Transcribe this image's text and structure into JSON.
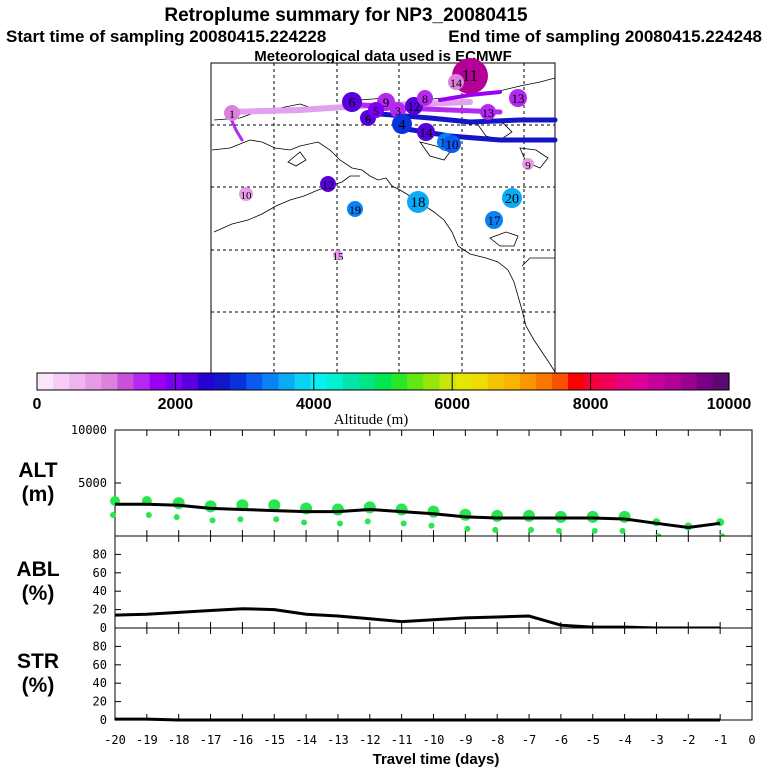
{
  "header": {
    "title": "Retroplume summary for NP3_20080415",
    "start_time": "Start time of sampling 20080415.224228",
    "end_time": "End time of sampling 20080415.224248",
    "met_data": "Meteorological data used is ECMWF"
  },
  "colorbar": {
    "label": "Altitude (m)",
    "tick_labels": [
      "0",
      "2000",
      "4000",
      "6000",
      "8000",
      "10000"
    ],
    "ticks": [
      0,
      2000,
      4000,
      6000,
      8000,
      10000
    ],
    "colors": [
      "#fae6fa",
      "#f5cdf5",
      "#f0b4f0",
      "#e69be6",
      "#dc82dc",
      "#c850dc",
      "#b428f0",
      "#9b00f5",
      "#7d00f0",
      "#5a00dc",
      "#2800d2",
      "#1414c8",
      "#0a32dc",
      "#0a5af0",
      "#0a82f5",
      "#0aaaf5",
      "#0ad2f5",
      "#0af0f0",
      "#00f0d2",
      "#00e6aa",
      "#00e682",
      "#00e650",
      "#28e628",
      "#64e614",
      "#96e60a",
      "#c8e60a",
      "#e6e600",
      "#f0dc00",
      "#f5c300",
      "#fab400",
      "#fa9600",
      "#fa7800",
      "#fa5000",
      "#fa0000",
      "#f5003c",
      "#f0005a",
      "#e60082",
      "#dc0096",
      "#c8009b",
      "#b40096",
      "#9b0091",
      "#780082",
      "#5a0a6e"
    ]
  },
  "map": {
    "trajectory_labels": [
      {
        "text": "11",
        "alt": 9200
      },
      {
        "text": "6",
        "alt": 2200
      },
      {
        "text": "9",
        "alt": 1400
      },
      {
        "text": "6",
        "alt": 2300
      },
      {
        "text": "5",
        "alt": 1900
      },
      {
        "text": "3",
        "alt": 1500
      },
      {
        "text": "4",
        "alt": 2800
      },
      {
        "text": "12",
        "alt": 2100
      },
      {
        "text": "14",
        "alt": 2300
      },
      {
        "text": "13",
        "alt": 1500
      },
      {
        "text": "8",
        "alt": 1400
      },
      {
        "text": "20",
        "alt": 3600
      },
      {
        "text": "18",
        "alt": 3500
      },
      {
        "text": "16",
        "alt": 3300
      },
      {
        "text": "10",
        "alt": 3100
      },
      {
        "text": "19",
        "alt": 3400
      },
      {
        "text": "17",
        "alt": 3300
      },
      {
        "text": "14",
        "alt": 1100
      },
      {
        "text": "13",
        "alt": 1600
      },
      {
        "text": "12",
        "alt": 2100
      },
      {
        "text": "10",
        "alt": 900
      },
      {
        "text": "9",
        "alt": 800
      },
      {
        "text": "15",
        "alt": 700
      },
      {
        "text": "1",
        "alt": 1100
      }
    ]
  },
  "chart_data": [
    {
      "type": "line",
      "name": "ALT",
      "ylabel": "ALT\n(m)",
      "ylabel_lines": [
        "ALT",
        "(m)"
      ],
      "ylim": [
        0,
        10000
      ],
      "yticks": [
        0,
        5000,
        10000
      ],
      "ytick_labels": [
        "5000",
        "10000"
      ],
      "x": [
        -20,
        -19,
        -18,
        -17,
        -16,
        -15,
        -14,
        -13,
        -12,
        -11,
        -10,
        -9,
        -8,
        -7,
        -6,
        -5,
        -4,
        -3,
        -2,
        -1
      ],
      "series": [
        {
          "name": "median altitude",
          "values": [
            3000,
            3000,
            2900,
            2600,
            2500,
            2400,
            2300,
            2300,
            2500,
            2300,
            2100,
            1800,
            1700,
            1700,
            1700,
            1700,
            1600,
            1200,
            800,
            1200
          ]
        },
        {
          "name": "cluster altitude (markers)",
          "values": [
            3300,
            3300,
            3100,
            2800,
            2900,
            2900,
            2600,
            2500,
            2700,
            2500,
            2300,
            2000,
            1900,
            1900,
            1800,
            1800,
            1800,
            1300,
            900,
            1300
          ]
        }
      ]
    },
    {
      "type": "line",
      "name": "ABL",
      "ylabel_lines": [
        "ABL",
        "(%)"
      ],
      "ylim": [
        0,
        100
      ],
      "yticks": [
        0,
        20,
        40,
        60,
        80
      ],
      "ytick_labels": [
        "0",
        "20",
        "40",
        "60",
        "80"
      ],
      "x": [
        -20,
        -19,
        -18,
        -17,
        -16,
        -15,
        -14,
        -13,
        -12,
        -11,
        -10,
        -9,
        -8,
        -7,
        -6,
        -5,
        -4,
        -3,
        -2,
        -1
      ],
      "values": [
        14,
        15,
        17,
        19,
        21,
        20,
        15,
        13,
        10,
        7,
        9,
        11,
        12,
        13,
        3,
        1,
        1,
        0,
        0,
        0
      ]
    },
    {
      "type": "line",
      "name": "STR",
      "ylabel_lines": [
        "STR",
        "(%)"
      ],
      "ylim": [
        0,
        100
      ],
      "yticks": [
        0,
        20,
        40,
        60,
        80
      ],
      "ytick_labels": [
        "0",
        "20",
        "40",
        "60",
        "80"
      ],
      "x": [
        -20,
        -19,
        -18,
        -17,
        -16,
        -15,
        -14,
        -13,
        -12,
        -11,
        -10,
        -9,
        -8,
        -7,
        -6,
        -5,
        -4,
        -3,
        -2,
        -1
      ],
      "values": [
        1,
        1,
        0,
        0,
        0,
        0,
        0,
        0,
        0,
        0,
        0,
        0,
        0,
        0,
        0,
        0,
        0,
        0,
        0,
        0
      ]
    }
  ],
  "xaxis": {
    "label": "Travel time (days)",
    "ticks": [
      -20,
      -19,
      -18,
      -17,
      -16,
      -15,
      -14,
      -13,
      -12,
      -11,
      -10,
      -9,
      -8,
      -7,
      -6,
      -5,
      -4,
      -3,
      -2,
      -1,
      0
    ],
    "tick_labels": [
      "-20",
      "-19",
      "-18",
      "-17",
      "-16",
      "-15",
      "-14",
      "-13",
      "-12",
      "-11",
      "-10",
      "-9",
      "-8",
      "-7",
      "-6",
      "-5",
      "-4",
      "-3",
      "-2",
      "-1",
      "0"
    ]
  }
}
